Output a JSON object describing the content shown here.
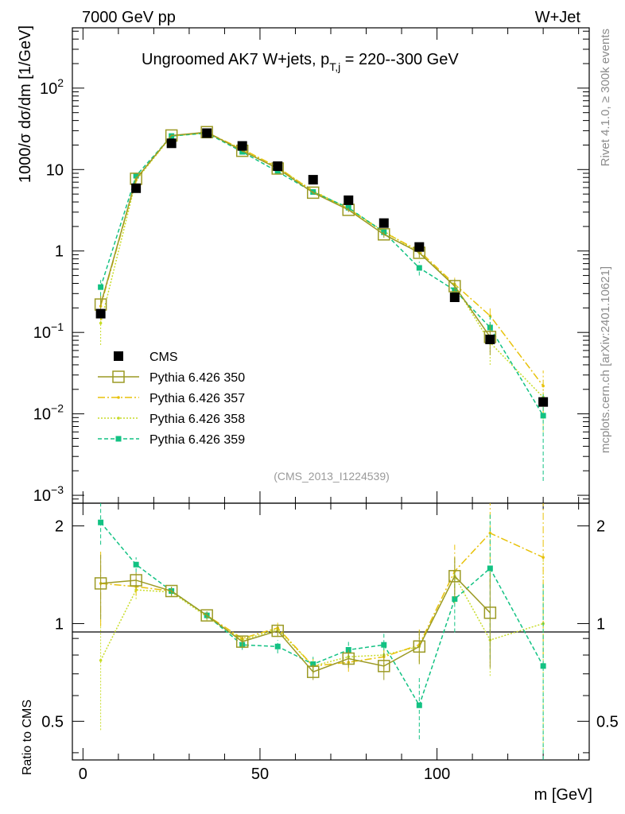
{
  "header": {
    "left": "7000 GeV pp",
    "right": "W+Jet"
  },
  "side_labels": {
    "top": "Rivet 4.1.0, ≥ 300k events",
    "bottom": "mcplots.cern.ch [arXiv:2401.10621]"
  },
  "reference": "(CMS_2013_I1224539)",
  "colors": {
    "cms": "#000000",
    "p350": "#9c9a24",
    "p357": "#e8c20a",
    "p358": "#c8dc28",
    "p359": "#12c283"
  },
  "chart_data": [
    {
      "type": "scatter",
      "panel": "main",
      "title": "Ungroomed AK7 W+jets, p",
      "title_sub": "T,j",
      "title_tail": " = 220--300 GeV",
      "ylabel": "1000/σ  dσ/dm [1/GeV]",
      "yscale": "log",
      "ylim": [
        0.0008,
        550
      ],
      "xlim": [
        -3,
        143
      ],
      "yticks": [
        {
          "v": 0.001,
          "base": "10",
          "exp": "−3"
        },
        {
          "v": 0.01,
          "base": "10",
          "exp": "−2"
        },
        {
          "v": 0.1,
          "base": "10",
          "exp": "−1"
        },
        {
          "v": 1,
          "base": "1",
          "exp": ""
        },
        {
          "v": 10,
          "base": "10",
          "exp": ""
        },
        {
          "v": 100,
          "base": "10",
          "exp": "2"
        }
      ],
      "x": [
        5,
        15,
        25,
        35,
        45,
        55,
        65,
        75,
        85,
        95,
        105,
        115,
        130
      ],
      "series": [
        {
          "name": "CMS",
          "key": "cms",
          "values": [
            0.17,
            5.9,
            21,
            28,
            19.5,
            11,
            7.5,
            4.2,
            2.2,
            1.12,
            0.27,
            0.082,
            0.014
          ]
        },
        {
          "name": "Pythia 6.426 350",
          "key": "p350",
          "values": [
            0.22,
            7.7,
            26.2,
            28.8,
            17.0,
            10.3,
            5.2,
            3.2,
            1.6,
            0.95,
            0.37,
            0.088,
            null
          ],
          "errors": [
            0.06,
            0.5,
            0.8,
            0.8,
            0.6,
            0.4,
            0.25,
            0.2,
            0.15,
            0.12,
            0.08,
            0.035,
            null
          ]
        },
        {
          "name": "Pythia 6.426 357",
          "key": "p357",
          "values": [
            0.21,
            7.6,
            26.0,
            28.5,
            17.8,
            10.7,
            5.4,
            3.3,
            1.7,
            1.0,
            0.39,
            0.16,
            0.022
          ],
          "errors": [
            0.07,
            0.6,
            0.8,
            0.8,
            0.6,
            0.4,
            0.25,
            0.2,
            0.15,
            0.12,
            0.08,
            0.05,
            0.012
          ]
        },
        {
          "name": "Pythia 6.426 358",
          "key": "p358",
          "values": [
            0.13,
            7.4,
            25.8,
            28.2,
            17.5,
            10.5,
            5.5,
            3.3,
            1.75,
            0.95,
            0.38,
            0.075,
            0.016
          ],
          "errors": [
            0.06,
            0.6,
            0.8,
            0.8,
            0.6,
            0.4,
            0.25,
            0.2,
            0.15,
            0.12,
            0.08,
            0.035,
            0.01
          ]
        },
        {
          "name": "Pythia 6.426 359",
          "key": "p359",
          "values": [
            0.36,
            8.4,
            25.8,
            28.0,
            16.5,
            9.4,
            5.3,
            3.4,
            1.7,
            0.62,
            0.33,
            0.115,
            0.0095
          ],
          "errors": [
            0.08,
            0.6,
            0.8,
            0.8,
            0.6,
            0.4,
            0.25,
            0.2,
            0.15,
            0.12,
            0.08,
            0.045,
            0.008
          ]
        }
      ]
    },
    {
      "type": "scatter",
      "panel": "ratio",
      "ylabel": "Ratio to CMS",
      "xlabel": "m [GeV]",
      "yscale": "log",
      "ylim": [
        0.38,
        2.35
      ],
      "xlim": [
        -3,
        143
      ],
      "yticks": [
        0.5,
        1,
        2
      ],
      "xticks": [
        0,
        50,
        100
      ],
      "x": [
        5,
        15,
        25,
        35,
        45,
        55,
        65,
        75,
        85,
        95,
        105,
        115,
        130
      ],
      "series": [
        {
          "name": "Pythia 6.426 350",
          "key": "p350",
          "values": [
            1.33,
            1.36,
            1.26,
            1.06,
            0.88,
            0.95,
            0.71,
            0.78,
            0.74,
            0.85,
            1.4,
            1.08,
            null
          ],
          "errors": [
            0.3,
            0.08,
            0.04,
            0.03,
            0.03,
            0.04,
            0.04,
            0.05,
            0.07,
            0.1,
            0.2,
            0.35,
            null
          ]
        },
        {
          "name": "Pythia 6.426 357",
          "key": "p357",
          "values": [
            1.33,
            1.3,
            1.26,
            1.06,
            0.9,
            0.97,
            0.74,
            0.76,
            0.79,
            0.86,
            1.45,
            1.9,
            1.6
          ],
          "errors": [
            0.35,
            0.08,
            0.04,
            0.03,
            0.03,
            0.04,
            0.04,
            0.05,
            0.07,
            0.1,
            0.3,
            0.6,
            0.8
          ]
        },
        {
          "name": "Pythia 6.426 358",
          "key": "p358",
          "values": [
            0.77,
            1.27,
            1.25,
            1.05,
            0.89,
            0.96,
            0.74,
            0.79,
            0.8,
            0.85,
            1.4,
            0.89,
            1.0
          ],
          "errors": [
            0.3,
            0.08,
            0.04,
            0.03,
            0.03,
            0.04,
            0.04,
            0.05,
            0.07,
            0.1,
            0.2,
            0.2,
            0.6
          ]
        },
        {
          "name": "Pythia 6.426 359",
          "key": "p359",
          "values": [
            2.05,
            1.52,
            1.26,
            1.06,
            0.86,
            0.85,
            0.75,
            0.83,
            0.86,
            0.56,
            1.19,
            1.48,
            0.74
          ],
          "errors": [
            0.3,
            0.08,
            0.04,
            0.03,
            0.03,
            0.04,
            0.04,
            0.05,
            0.07,
            0.12,
            0.25,
            0.7,
            0.6
          ]
        }
      ]
    }
  ]
}
